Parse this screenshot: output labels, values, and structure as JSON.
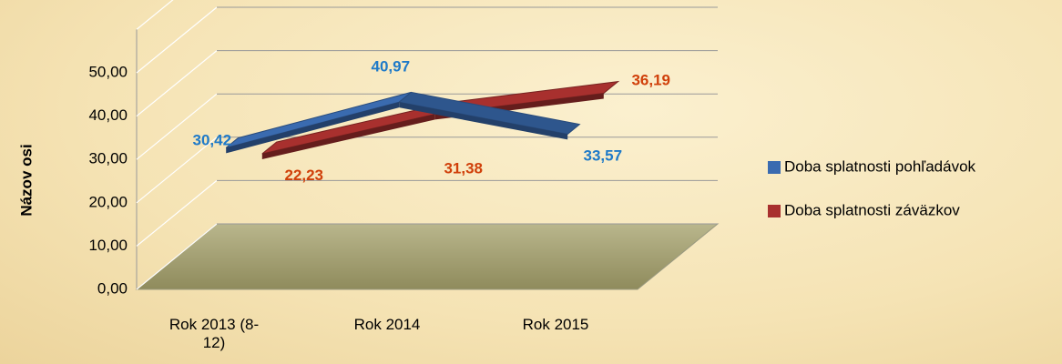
{
  "chart_data": {
    "type": "line",
    "categories": [
      "Rok 2013 (8-12)",
      "Rok 2014",
      "Rok 2015"
    ],
    "y_axis_label": "Názov osi",
    "series": [
      {
        "name": "Doba splatnosti pohľadávok",
        "color": "#3a6bb0",
        "label_color": "#1f7ac8",
        "values": [
          30.42,
          40.97,
          33.57
        ],
        "value_labels": [
          "30,42",
          "40,97",
          "33,57"
        ]
      },
      {
        "name": "Doba splatnosti záväzkov",
        "color": "#a8302e",
        "label_color": "#d0400a",
        "values": [
          22.23,
          31.38,
          36.19
        ],
        "value_labels": [
          "22,23",
          "31,38",
          "36,19"
        ]
      }
    ],
    "ylim": [
      0,
      60
    ],
    "yticks": [
      {
        "value": 0,
        "label": "0,00"
      },
      {
        "value": 10,
        "label": "10,00"
      },
      {
        "value": 20,
        "label": "20,00"
      },
      {
        "value": 30,
        "label": "30,00"
      },
      {
        "value": 40,
        "label": "40,00"
      },
      {
        "value": 50,
        "label": "50,00"
      }
    ],
    "grid": true,
    "legend": "right"
  }
}
